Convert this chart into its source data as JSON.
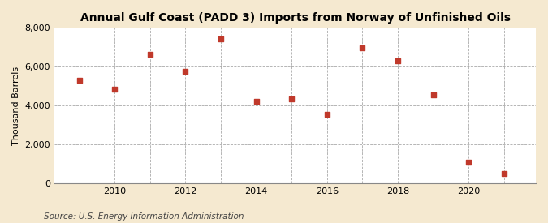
{
  "title": "Annual Gulf Coast (PADD 3) Imports from Norway of Unfinished Oils",
  "ylabel": "Thousand Barrels",
  "source": "Source: U.S. Energy Information Administration",
  "years": [
    2009,
    2010,
    2011,
    2012,
    2013,
    2014,
    2015,
    2016,
    2017,
    2018,
    2019,
    2020,
    2021
  ],
  "values": [
    5300,
    4850,
    6650,
    5750,
    7450,
    4200,
    4350,
    3550,
    6950,
    6300,
    4550,
    1100,
    500
  ],
  "marker_color": "#c0392b",
  "marker_size": 5,
  "background_color": "#f5e9d0",
  "plot_background_color": "#ffffff",
  "grid_color": "#aaaaaa",
  "ylim": [
    0,
    8000
  ],
  "yticks": [
    0,
    2000,
    4000,
    6000,
    8000
  ],
  "xlim_min": 2008.3,
  "xlim_max": 2021.9,
  "xtick_years": [
    2010,
    2012,
    2014,
    2016,
    2018,
    2020
  ],
  "title_fontsize": 10,
  "label_fontsize": 8,
  "source_fontsize": 7.5
}
